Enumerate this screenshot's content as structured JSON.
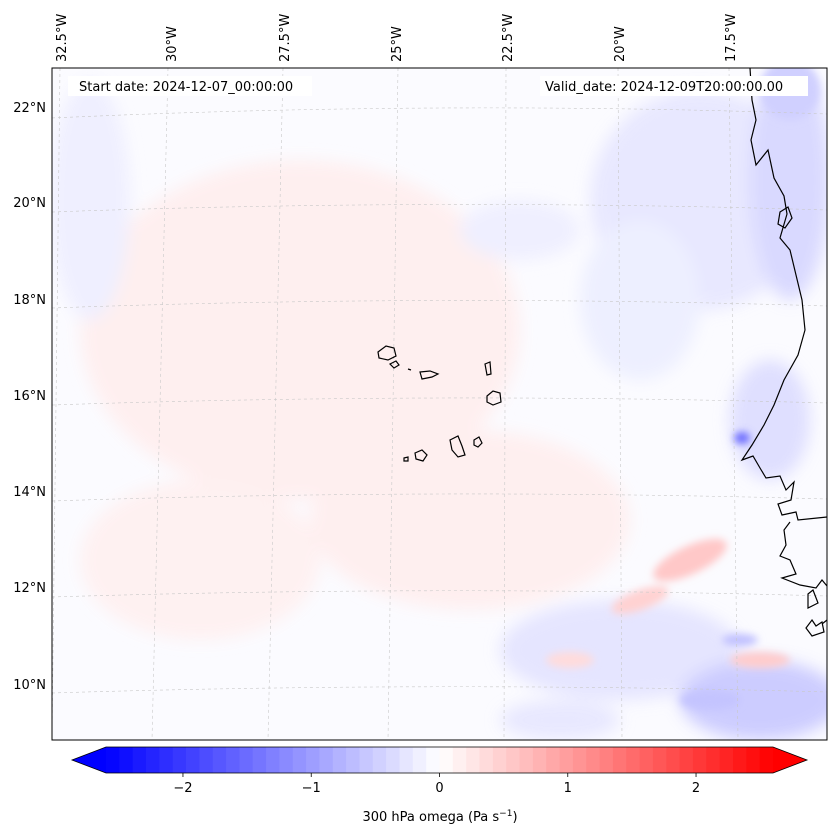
{
  "map": {
    "start_date": "Start date: 2024-12-07_00:00:00",
    "valid_date": "Valid_date: 2024-12-09T20:00:00.00",
    "lon_labels": [
      "32.5°W",
      "30°W",
      "27.5°W",
      "25°W",
      "22.5°W",
      "20°W",
      "17.5°W"
    ],
    "lat_labels": [
      "22°N",
      "20°N",
      "18°N",
      "16°N",
      "14°N",
      "12°N",
      "10°N"
    ],
    "features": {
      "islands": "Cape Verde",
      "coastline": "West Africa",
      "field": "300 hPa vertical velocity (omega)"
    }
  },
  "colorbar": {
    "label_main": "300 hPa omega (Pa s",
    "label_exp": "−1",
    "label_close": ")",
    "ticks": [
      "−2",
      "−1",
      "0",
      "1",
      "2"
    ],
    "tick_values": [
      -2,
      -1,
      0,
      1,
      2
    ],
    "range": [
      -2.6,
      2.6
    ],
    "extend": "both",
    "colormap": "bwr",
    "color_low": "#0000ff",
    "color_mid": "#ffffff",
    "color_high": "#ff0000"
  }
}
